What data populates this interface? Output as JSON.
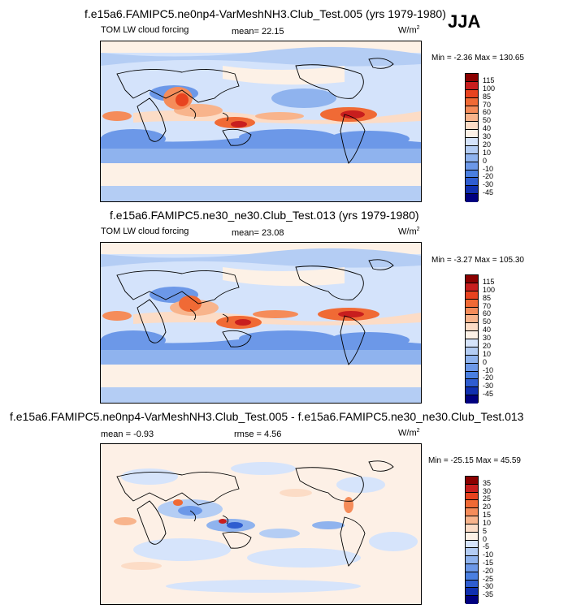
{
  "season": "JJA",
  "panels": [
    {
      "title": "f.e15a6.FAMIPC5.ne0np4-VarMeshNH3.Club_Test.005 (yrs 1979-1980)",
      "left_label": "TOM LW cloud forcing",
      "stat_label": "mean=",
      "stat_value": "22.15",
      "units": "W/m",
      "units_exp": "2",
      "min_label": "Min =",
      "min_value": "-2.36",
      "max_label": "Max =",
      "max_value": "130.65",
      "levels": [
        "115",
        "100",
        "85",
        "70",
        "60",
        "50",
        "40",
        "30",
        "20",
        "10",
        "0",
        "-10",
        "-20",
        "-30",
        "-45"
      ]
    },
    {
      "title": "f.e15a6.FAMIPC5.ne30_ne30.Club_Test.013 (yrs 1979-1980)",
      "left_label": "TOM LW cloud forcing",
      "stat_label": "mean=",
      "stat_value": "23.08",
      "units": "W/m",
      "units_exp": "2",
      "min_label": "Min =",
      "min_value": "-3.27",
      "max_label": "Max =",
      "max_value": "105.30",
      "levels": [
        "115",
        "100",
        "85",
        "70",
        "60",
        "50",
        "40",
        "30",
        "20",
        "10",
        "0",
        "-10",
        "-20",
        "-30",
        "-45"
      ]
    },
    {
      "title": "f.e15a6.FAMIPC5.ne0np4-VarMeshNH3.Club_Test.005 - f.e15a6.FAMIPC5.ne30_ne30.Club_Test.013",
      "left_label": "mean =",
      "left_value": "-0.93",
      "stat_label": "rmse =",
      "stat_value": "4.56",
      "units": "W/m",
      "units_exp": "2",
      "min_label": "Min =",
      "min_value": "-25.15",
      "max_label": "Max =",
      "max_value": "45.59",
      "levels": [
        "35",
        "30",
        "25",
        "20",
        "15",
        "10",
        "5",
        "0",
        "-5",
        "-10",
        "-15",
        "-20",
        "-25",
        "-30",
        "-35"
      ]
    }
  ],
  "colorbar_colors": [
    "#8b0000",
    "#c81e1e",
    "#e8431f",
    "#f06a35",
    "#f58c5a",
    "#f8b48c",
    "#fcdcc6",
    "#fdf1e6",
    "#d6e4fb",
    "#b4cdf4",
    "#8fb3ee",
    "#6c98e8",
    "#4a7fe0",
    "#2f5dd0",
    "#1030b0",
    "#000080"
  ],
  "map_colors": {
    "ocean_base": "#d4e3fb",
    "diff_base": "#fdf0e6"
  }
}
